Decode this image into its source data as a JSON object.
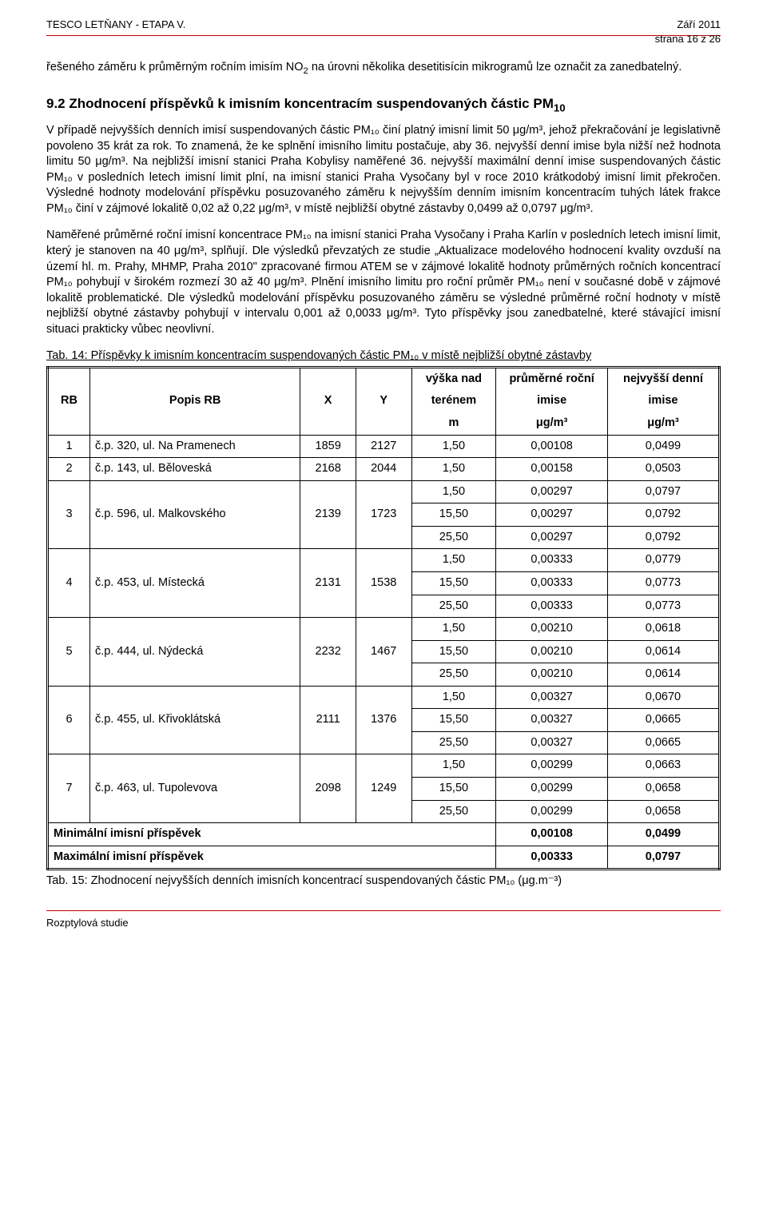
{
  "header": {
    "left": "TESCO LETŇANY - ETAPA V.",
    "right_top": "Září 2011",
    "right_bottom": "strana 16 z 26"
  },
  "para1_a": "řešeného záměru k průměrným ročním imisím NO",
  "para1_sub": "2",
  "para1_b": " na úrovni několika desetitisícin mikrogramů lze označit za zanedbatelný.",
  "section_heading_a": "9.2 Zhodnocení příspěvků k imisním koncentracím suspendovaných částic PM",
  "section_heading_sub": "10",
  "para2": "V případě nejvyšších denních imisí suspendovaných částic PM₁₀ činí platný imisní limit 50 μg/m³, jehož překračování je legislativně povoleno 35 krát za rok. To znamená, že ke splnění imisního limitu postačuje, aby 36. nejvyšší denní imise byla nižší než hodnota limitu 50 μg/m³. Na nejbližší imisní stanici Praha Kobylisy naměřené 36. nejvyšší maximální denní imise suspendovaných částic PM₁₀ v posledních letech imisní limit plní, na imisní stanici Praha Vysočany byl v roce 2010 krátkodobý imisní limit překročen. Výsledné hodnoty modelování příspěvku posuzovaného záměru k nejvyšším denním imisním koncentracím tuhých látek frakce PM₁₀ činí v zájmové lokalitě 0,02 až 0,22 μg/m³, v místě nejbližší obytné zástavby 0,0499 až 0,0797 μg/m³.",
  "para3": "Naměřené průměrné roční imisní koncentrace PM₁₀ na imisní stanici Praha Vysočany i Praha Karlín v posledních letech imisní limit, který je stanoven na 40 μg/m³, splňují. Dle výsledků převzatých ze studie „Aktualizace modelového hodnocení kvality ovzduší na území hl. m. Prahy, MHMP, Praha 2010\" zpracované firmou ATEM se v zájmové lokalitě hodnoty průměrných ročních koncentrací PM₁₀ pohybují v širokém rozmezí 30 až 40 μg/m³. Plnění imisního limitu pro roční průměr PM₁₀ není v současné době v zájmové lokalitě problematické. Dle výsledků modelování příspěvku posuzovaného záměru se výsledné průměrné roční hodnoty v místě nejbližší obytné zástavby pohybují v intervalu 0,001 až 0,0033 μg/m³. Tyto příspěvky jsou zanedbatelné, které stávající imisní situaci prakticky vůbec neovlivní.",
  "tab14_caption": "Tab. 14: Příspěvky k imisním koncentracím suspendovaných částic PM₁₀ v místě nejbližší obytné zástavby",
  "table": {
    "headers": {
      "rb": "RB",
      "popis": "Popis RB",
      "x": "X",
      "y": "Y",
      "vyska_l1": "výška nad",
      "vyska_l2": "terénem",
      "vyska_l3": "m",
      "prum_l1": "průměrné roční",
      "prum_l2": "imise",
      "prum_l3": "μg/m³",
      "nej_l1": "nejvyšší denní",
      "nej_l2": "imise",
      "nej_l3": "μg/m³"
    },
    "rows": [
      {
        "rb": "1",
        "popis": "č.p. 320, ul. Na Pramenech",
        "x": "1859",
        "y": "2127",
        "sub": [
          [
            "1,50",
            "0,00108",
            "0,0499"
          ]
        ]
      },
      {
        "rb": "2",
        "popis": "č.p. 143, ul. Běloveská",
        "x": "2168",
        "y": "2044",
        "sub": [
          [
            "1,50",
            "0,00158",
            "0,0503"
          ]
        ]
      },
      {
        "rb": "3",
        "popis": "č.p. 596, ul. Malkovského",
        "x": "2139",
        "y": "1723",
        "sub": [
          [
            "1,50",
            "0,00297",
            "0,0797"
          ],
          [
            "15,50",
            "0,00297",
            "0,0792"
          ],
          [
            "25,50",
            "0,00297",
            "0,0792"
          ]
        ]
      },
      {
        "rb": "4",
        "popis": "č.p. 453, ul. Místecká",
        "x": "2131",
        "y": "1538",
        "sub": [
          [
            "1,50",
            "0,00333",
            "0,0779"
          ],
          [
            "15,50",
            "0,00333",
            "0,0773"
          ],
          [
            "25,50",
            "0,00333",
            "0,0773"
          ]
        ]
      },
      {
        "rb": "5",
        "popis": "č.p. 444, ul. Nýdecká",
        "x": "2232",
        "y": "1467",
        "sub": [
          [
            "1,50",
            "0,00210",
            "0,0618"
          ],
          [
            "15,50",
            "0,00210",
            "0,0614"
          ],
          [
            "25,50",
            "0,00210",
            "0,0614"
          ]
        ]
      },
      {
        "rb": "6",
        "popis": "č.p. 455, ul. Křivoklátská",
        "x": "2111",
        "y": "1376",
        "sub": [
          [
            "1,50",
            "0,00327",
            "0,0670"
          ],
          [
            "15,50",
            "0,00327",
            "0,0665"
          ],
          [
            "25,50",
            "0,00327",
            "0,0665"
          ]
        ]
      },
      {
        "rb": "7",
        "popis": "č.p. 463, ul. Tupolevova",
        "x": "2098",
        "y": "1249",
        "sub": [
          [
            "1,50",
            "0,00299",
            "0,0663"
          ],
          [
            "15,50",
            "0,00299",
            "0,0658"
          ],
          [
            "25,50",
            "0,00299",
            "0,0658"
          ]
        ]
      }
    ],
    "min_label": "Minimální imisní příspěvek",
    "min_vals": [
      "0,00108",
      "0,0499"
    ],
    "max_label": "Maximální imisní příspěvek",
    "max_vals": [
      "0,00333",
      "0,0797"
    ]
  },
  "tab15_caption": "Tab. 15: Zhodnocení nejvyšších denních imisních koncentrací suspendovaných částic PM₁₀ (μg.m⁻³)",
  "footer": "Rozptylová studie"
}
